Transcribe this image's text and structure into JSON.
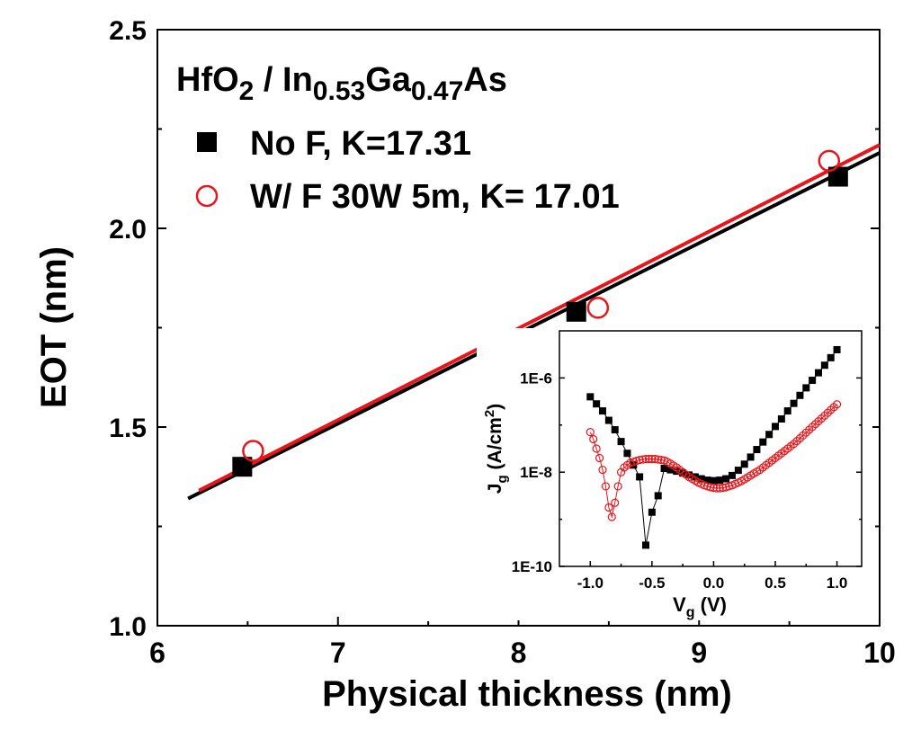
{
  "colors": {
    "black": "#000000",
    "red": "#e8161b"
  },
  "chart_data": [
    {
      "type": "scatter",
      "title": "",
      "xlabel": "Physical thickness (nm)",
      "ylabel": "EOT (nm)",
      "xlim": [
        6,
        10
      ],
      "ylim": [
        1.0,
        2.5
      ],
      "xticks": [
        6,
        7,
        8,
        9,
        10
      ],
      "xtick_labels": [
        "6",
        "7",
        "8",
        "9",
        "10"
      ],
      "yticks": [
        1.0,
        1.5,
        2.0,
        2.5
      ],
      "ytick_labels": [
        "1.0",
        "1.5",
        "2.0",
        "2.5"
      ],
      "legend": {
        "title": {
          "base1": "HfO",
          "sub1": "2",
          "mid": " / In",
          "sub2": "0.53",
          "mid2": "Ga",
          "sub3": "0.47",
          "end": "As"
        },
        "placement": "top-left"
      },
      "series": [
        {
          "name": "No F, K=17.31",
          "marker": "filled-square",
          "color": "#000000",
          "points": [
            [
              6.47,
              1.4
            ],
            [
              8.32,
              1.79
            ],
            [
              9.77,
              2.13
            ]
          ],
          "fit_line": [
            [
              6.17,
              1.32
            ],
            [
              10.0,
              2.19
            ]
          ]
        },
        {
          "name": "W/ F 30W 5m, K= 17.01",
          "marker": "open-circle",
          "color": "#e8161b",
          "points": [
            [
              6.53,
              1.44
            ],
            [
              8.44,
              1.8
            ],
            [
              9.72,
              2.17
            ]
          ],
          "fit_line": [
            [
              6.23,
              1.34
            ],
            [
              10.0,
              2.21
            ]
          ]
        }
      ]
    },
    {
      "type": "scatter",
      "title": "",
      "xlabel": {
        "base": "V",
        "sub": "g",
        "rest": " (V)"
      },
      "ylabel": {
        "base": "J",
        "sub": "g",
        "rest": " (A/cm",
        "sup": "2",
        "end": ")"
      },
      "xlim": [
        -1.25,
        1.2
      ],
      "ylim_log10": [
        -10,
        -5
      ],
      "xticks": [
        -1.0,
        -0.5,
        0.0,
        0.5,
        1.0
      ],
      "xtick_labels": [
        "-1.0",
        "-0.5",
        "0.0",
        "0.5",
        "1.0"
      ],
      "yticks_log10": [
        -10,
        -8,
        -6
      ],
      "ytick_labels": [
        "1E-10",
        "1E-8",
        "1E-6"
      ],
      "series": [
        {
          "name": "No F",
          "marker": "filled-square",
          "color": "#000000",
          "x": [
            -1.0,
            -0.95,
            -0.9,
            -0.85,
            -0.8,
            -0.75,
            -0.7,
            -0.65,
            -0.6,
            -0.55,
            -0.5,
            -0.45,
            -0.4,
            -0.35,
            -0.3,
            -0.25,
            -0.2,
            -0.15,
            -0.1,
            -0.05,
            0.0,
            0.05,
            0.1,
            0.15,
            0.2,
            0.25,
            0.3,
            0.35,
            0.4,
            0.45,
            0.5,
            0.55,
            0.6,
            0.65,
            0.7,
            0.75,
            0.8,
            0.85,
            0.9,
            0.95,
            1.0
          ],
          "log10_y": [
            -6.4,
            -6.55,
            -6.7,
            -6.9,
            -7.1,
            -7.35,
            -7.6,
            -7.85,
            -8.1,
            -9.55,
            -8.85,
            -8.5,
            -7.92,
            -7.95,
            -7.98,
            -8.02,
            -8.06,
            -8.1,
            -8.14,
            -8.17,
            -8.18,
            -8.17,
            -8.14,
            -8.07,
            -7.96,
            -7.83,
            -7.68,
            -7.52,
            -7.36,
            -7.2,
            -7.03,
            -6.87,
            -6.7,
            -6.54,
            -6.37,
            -6.21,
            -6.05,
            -5.89,
            -5.73,
            -5.57,
            -5.4
          ]
        },
        {
          "name": "W/ F 30W 5m",
          "marker": "open-circle",
          "color": "#e8161b",
          "x": [
            -1.0,
            -0.975,
            -0.95,
            -0.925,
            -0.9,
            -0.875,
            -0.85,
            -0.825,
            -0.8,
            -0.775,
            -0.75,
            -0.725,
            -0.7,
            -0.675,
            -0.65,
            -0.625,
            -0.6,
            -0.575,
            -0.55,
            -0.525,
            -0.5,
            -0.475,
            -0.45,
            -0.425,
            -0.4,
            -0.375,
            -0.35,
            -0.325,
            -0.3,
            -0.275,
            -0.25,
            -0.225,
            -0.2,
            -0.175,
            -0.15,
            -0.125,
            -0.1,
            -0.075,
            -0.05,
            -0.025,
            0.0,
            0.025,
            0.05,
            0.075,
            0.1,
            0.125,
            0.15,
            0.175,
            0.2,
            0.225,
            0.25,
            0.275,
            0.3,
            0.325,
            0.35,
            0.375,
            0.4,
            0.425,
            0.45,
            0.475,
            0.5,
            0.525,
            0.55,
            0.575,
            0.6,
            0.625,
            0.65,
            0.675,
            0.7,
            0.725,
            0.75,
            0.775,
            0.8,
            0.825,
            0.85,
            0.875,
            0.9,
            0.925,
            0.95,
            0.975,
            1.0
          ],
          "log10_y": [
            -7.15,
            -7.3,
            -7.5,
            -7.7,
            -7.95,
            -8.3,
            -8.75,
            -8.95,
            -8.65,
            -8.3,
            -8.0,
            -7.9,
            -7.85,
            -7.8,
            -7.78,
            -7.76,
            -7.74,
            -7.73,
            -7.72,
            -7.72,
            -7.72,
            -7.72,
            -7.73,
            -7.74,
            -7.75,
            -7.78,
            -7.82,
            -7.86,
            -7.9,
            -7.95,
            -8.0,
            -8.05,
            -8.1,
            -8.14,
            -8.18,
            -8.22,
            -8.25,
            -8.28,
            -8.3,
            -8.32,
            -8.33,
            -8.34,
            -8.34,
            -8.33,
            -8.32,
            -8.3,
            -8.28,
            -8.25,
            -8.22,
            -8.19,
            -8.15,
            -8.11,
            -8.07,
            -8.03,
            -7.99,
            -7.95,
            -7.9,
            -7.85,
            -7.8,
            -7.75,
            -7.7,
            -7.65,
            -7.6,
            -7.55,
            -7.5,
            -7.45,
            -7.4,
            -7.34,
            -7.28,
            -7.22,
            -7.16,
            -7.1,
            -7.04,
            -6.98,
            -6.92,
            -6.86,
            -6.8,
            -6.74,
            -6.68,
            -6.62,
            -6.56
          ]
        }
      ]
    }
  ]
}
